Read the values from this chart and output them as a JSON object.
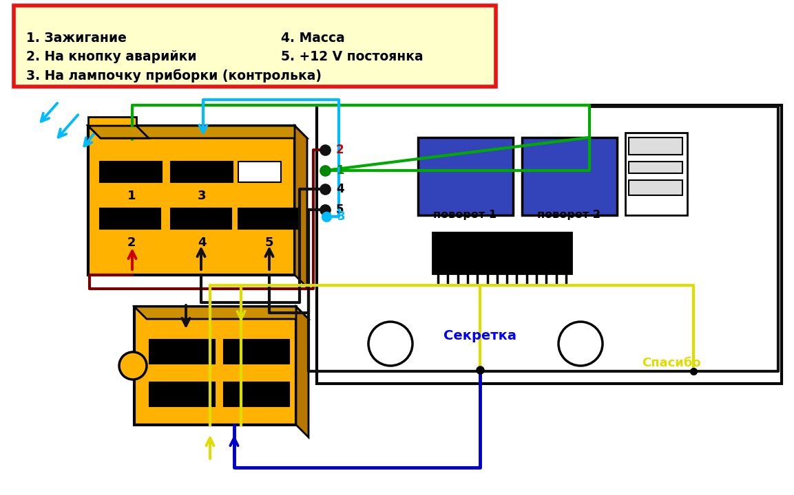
{
  "bg_color": "#ffffff",
  "legend_bg": "#ffffcc",
  "legend_border": "#ee1111",
  "legend_text_l": [
    "1. Зажигание",
    "2. На кнопку аварийки",
    "3. На лампочку приборки (контролька)"
  ],
  "legend_text_r": [
    "4. Масса",
    "5. +12 V постоянка"
  ],
  "conn_gold": "#FFB300",
  "conn_dark": "#b87800",
  "conn_side": "#cc9000",
  "blue_cap": "#3344bb",
  "w_green": "#00aa00",
  "w_cyan": "#00bbff",
  "w_darkred": "#770000",
  "w_black": "#111111",
  "w_yellow": "#dddd00",
  "w_blue": "#0000cc",
  "lbl_por1": "поворот 1",
  "lbl_por2": "поворот 2",
  "lbl_sek": "Секретка",
  "lbl_spa": "Спасибо"
}
